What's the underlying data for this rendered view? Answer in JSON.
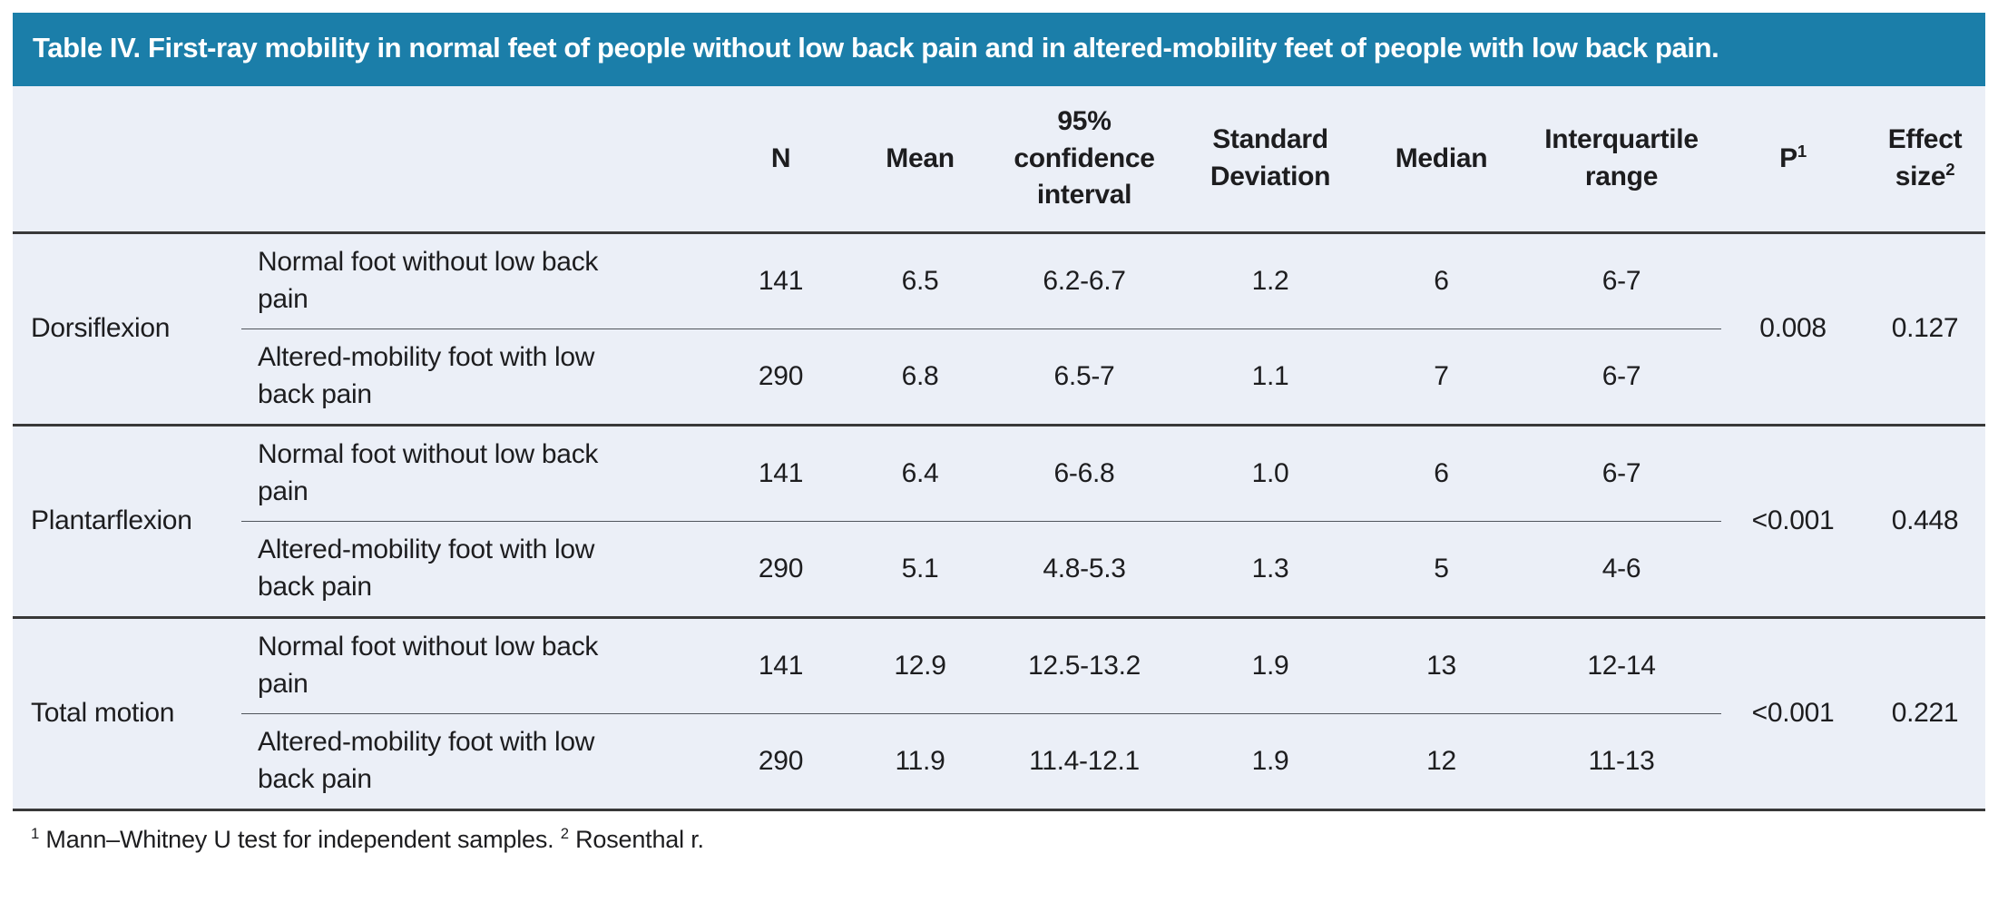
{
  "title": "Table IV. First-ray mobility in normal feet of people without low back pain and in altered-mobility feet of people with low back pain.",
  "colors": {
    "title_bar_bg": "#1b7ea9",
    "title_text": "#ffffff",
    "table_bg": "#ebeff7",
    "heavy_rule": "#383838",
    "light_rule": "#50555c",
    "body_text": "#1d1d1f"
  },
  "columns": {
    "n": "N",
    "mean": "Mean",
    "ci": "95% confidence interval",
    "sd": "Standard Deviation",
    "median": "Median",
    "iqr": "Interquartile range",
    "p_label": "P",
    "p_sup": "1",
    "effect_label": "Effect size",
    "effect_sup": "2"
  },
  "groups": [
    {
      "label": "Dorsiflexion",
      "p": "0.008",
      "effect": "0.127",
      "rows": [
        {
          "label": "Normal foot without low back pain",
          "n": "141",
          "mean": "6.5",
          "ci": "6.2-6.7",
          "sd": "1.2",
          "median": "6",
          "iqr": "6-7"
        },
        {
          "label": "Altered-mobility foot with low back pain",
          "n": "290",
          "mean": "6.8",
          "ci": "6.5-7",
          "sd": "1.1",
          "median": "7",
          "iqr": "6-7"
        }
      ]
    },
    {
      "label": "Plantarflexion",
      "p": "<0.001",
      "effect": "0.448",
      "rows": [
        {
          "label": "Normal foot without low back pain",
          "n": "141",
          "mean": "6.4",
          "ci": "6-6.8",
          "sd": "1.0",
          "median": "6",
          "iqr": "6-7"
        },
        {
          "label": "Altered-mobility foot with low back pain",
          "n": "290",
          "mean": "5.1",
          "ci": "4.8-5.3",
          "sd": "1.3",
          "median": "5",
          "iqr": "4-6"
        }
      ]
    },
    {
      "label": "Total motion",
      "p": "<0.001",
      "effect": "0.221",
      "rows": [
        {
          "label": "Normal foot without low back pain",
          "n": "141",
          "mean": "12.9",
          "ci": "12.5-13.2",
          "sd": "1.9",
          "median": "13",
          "iqr": "12-14"
        },
        {
          "label": "Altered-mobility foot with low back pain",
          "n": "290",
          "mean": "11.9",
          "ci": "11.4-12.1",
          "sd": "1.9",
          "median": "12",
          "iqr": "11-13"
        }
      ]
    }
  ],
  "footnote": {
    "sup1": "1",
    "text1": " Mann–Whitney U test for independent samples. ",
    "sup2": "2",
    "text2": " Rosenthal r."
  }
}
